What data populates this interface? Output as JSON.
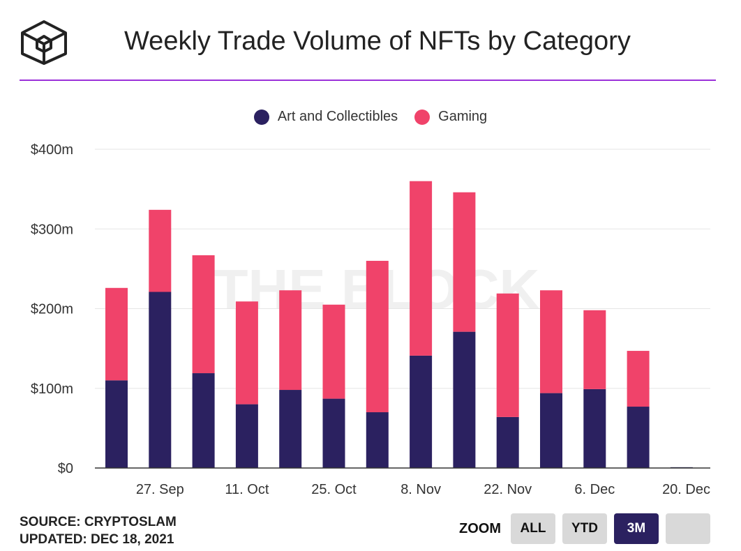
{
  "header": {
    "title": "Weekly Trade Volume of NFTs by Category"
  },
  "legend": [
    {
      "label": "Art and Collectibles",
      "color": "#2b2160"
    },
    {
      "label": "Gaming",
      "color": "#f0436a"
    }
  ],
  "chart_data": {
    "type": "bar",
    "stacked": true,
    "x": [
      "20. Sep",
      "27. Sep",
      "4. Oct",
      "11. Oct",
      "18. Oct",
      "25. Oct",
      "1. Nov",
      "8. Nov",
      "15. Nov",
      "22. Nov",
      "29. Nov",
      "6. Dec",
      "13. Dec",
      "20. Dec"
    ],
    "x_tick_labels": [
      "27. Sep",
      "11. Oct",
      "25. Oct",
      "8. Nov",
      "22. Nov",
      "6. Dec",
      "20. Dec"
    ],
    "series": [
      {
        "name": "Art and Collectibles",
        "color": "#2b2160",
        "values": [
          110,
          221,
          119,
          80,
          98,
          87,
          70,
          141,
          171,
          64,
          94,
          99,
          77,
          1
        ]
      },
      {
        "name": "Gaming",
        "color": "#f0436a",
        "values": [
          116,
          103,
          148,
          129,
          125,
          118,
          190,
          219,
          175,
          155,
          129,
          99,
          70,
          0
        ]
      }
    ],
    "ylim": [
      0,
      400
    ],
    "y_ticks": [
      0,
      100,
      200,
      300,
      400
    ],
    "y_tick_labels": [
      "$0",
      "$100m",
      "$200m",
      "$300m",
      "$400m"
    ],
    "grid": true,
    "legend_position": "top-center",
    "watermark": "THE BLOCK"
  },
  "footer": {
    "source": "SOURCE: CRYPTOSLAM",
    "updated": "UPDATED: DEC 18, 2021"
  },
  "zoom": {
    "label": "ZOOM",
    "buttons": [
      {
        "label": "ALL",
        "active": false
      },
      {
        "label": "YTD",
        "active": false
      },
      {
        "label": "3M",
        "active": true
      }
    ]
  }
}
